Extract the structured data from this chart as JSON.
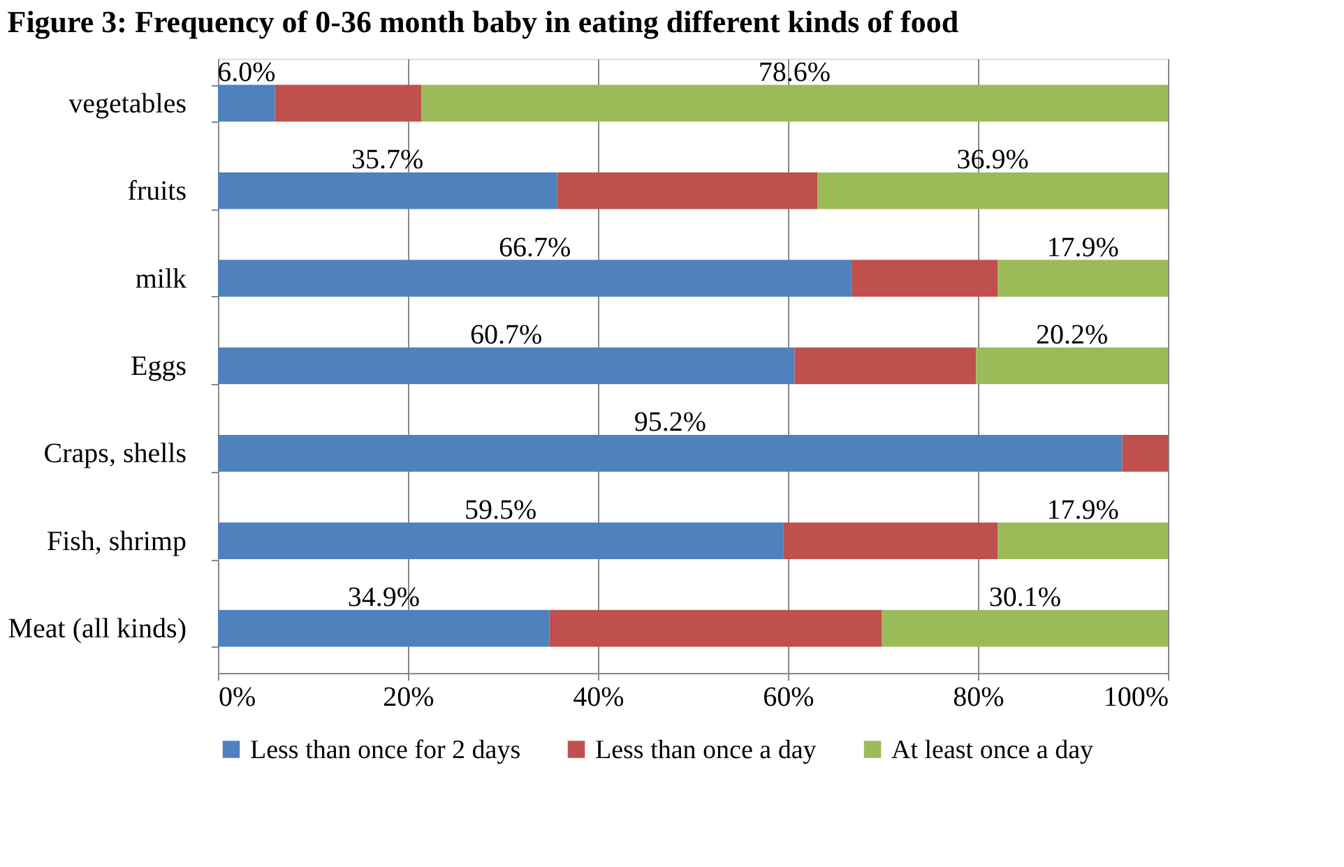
{
  "chart_data": {
    "type": "bar",
    "orientation": "horizontal",
    "stacked": true,
    "title": "Figure 3: Frequency of 0-36 month baby in eating different kinds of food",
    "categories": [
      "vegetables",
      "fruits",
      "milk",
      "Eggs",
      "Craps, shells",
      "Fish, shrimp",
      "Meat (all kinds)"
    ],
    "series": [
      {
        "name": "Less than once for 2 days",
        "color": "#4f81bd",
        "values": [
          6.0,
          35.7,
          66.7,
          60.7,
          95.2,
          59.5,
          34.9
        ],
        "value_labels": [
          "6.0%",
          "35.7%",
          "66.7%",
          "60.7%",
          "95.2%",
          "59.5%",
          "34.9%"
        ]
      },
      {
        "name": "Less than once a day",
        "color": "#c0504d",
        "values": [
          15.4,
          27.4,
          15.4,
          19.1,
          4.8,
          22.6,
          35.0
        ]
      },
      {
        "name": "At least once a day",
        "color": "#9bbb59",
        "values": [
          78.6,
          36.9,
          17.9,
          20.2,
          0,
          17.9,
          30.1
        ],
        "value_labels": [
          "78.6%",
          "36.9%",
          "17.9%",
          "20.2%",
          null,
          "17.9%",
          "30.1%"
        ]
      }
    ],
    "xlim": [
      0,
      100
    ],
    "xticks": [
      {
        "value": 0,
        "label": "0%"
      },
      {
        "value": 20,
        "label": "20%"
      },
      {
        "value": 40,
        "label": "40%"
      },
      {
        "value": 60,
        "label": "60%"
      },
      {
        "value": 80,
        "label": "80%"
      },
      {
        "value": 100,
        "label": "100%"
      }
    ],
    "grid": "x",
    "legend": "bottom"
  }
}
